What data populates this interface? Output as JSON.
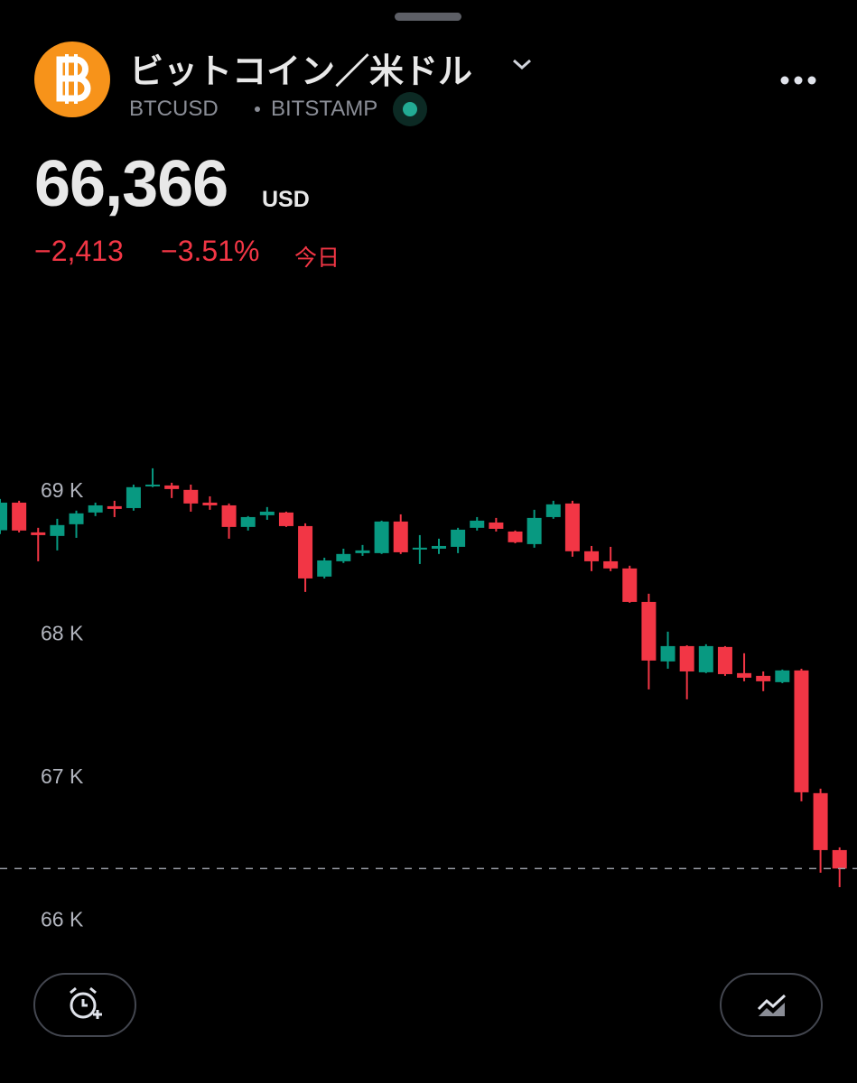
{
  "header": {
    "title": "ビットコイン／米ドル",
    "symbol": "BTCUSD",
    "exchange": "BITSTAMP",
    "price": "66,366",
    "currency": "USD",
    "change": "−2,413",
    "change_percent": "−3.51%",
    "period": "今日"
  },
  "chart_data": {
    "type": "candlestick",
    "open": [
      68731,
      68924,
      68716,
      68691,
      68773,
      68855,
      68899,
      68886,
      69038,
      69044,
      69013,
      68924,
      68905,
      68754,
      68836,
      68855,
      68760,
      68407,
      68514,
      68571,
      68571,
      68792,
      68596,
      68602,
      68615,
      68748,
      68785,
      68722,
      68634,
      68823,
      68918,
      68584,
      68514,
      68464,
      68230,
      67814,
      67921,
      67738,
      67915,
      67732,
      67713,
      67669,
      67751,
      66893,
      66495
    ],
    "high": [
      68950,
      68937,
      68748,
      68811,
      68868,
      68924,
      68937,
      69050,
      69164,
      69063,
      69050,
      68968,
      68918,
      68830,
      68893,
      68861,
      68779,
      68539,
      68602,
      68628,
      68798,
      68842,
      68697,
      68672,
      68748,
      68823,
      68817,
      68729,
      68874,
      68937,
      68937,
      68621,
      68615,
      68483,
      68287,
      68022,
      67927,
      67934,
      67921,
      67871,
      67744,
      67757,
      67763,
      66924,
      66514
    ],
    "low": [
      68704,
      68716,
      68514,
      68590,
      68678,
      68830,
      68823,
      68868,
      69032,
      68956,
      68861,
      68874,
      68672,
      68729,
      68804,
      68754,
      68300,
      68394,
      68502,
      68552,
      68565,
      68565,
      68495,
      68565,
      68571,
      68729,
      68722,
      68640,
      68609,
      68811,
      68546,
      68445,
      68445,
      68224,
      67618,
      67763,
      67549,
      67732,
      67713,
      67675,
      67606,
      67662,
      66836,
      66337,
      66236
    ],
    "close": [
      68924,
      68729,
      68697,
      68767,
      68849,
      68905,
      68880,
      69032,
      69050,
      69019,
      68918,
      68905,
      68754,
      68823,
      68861,
      68760,
      68394,
      68520,
      68565,
      68590,
      68792,
      68577,
      68609,
      68621,
      68735,
      68798,
      68741,
      68647,
      68817,
      68912,
      68584,
      68514,
      68464,
      68230,
      67820,
      67921,
      67744,
      67921,
      67725,
      67700,
      67675,
      67751,
      66899,
      66495,
      66366
    ],
    "up_color": "#089981",
    "down_color": "#f23645",
    "ylim": [
      65750,
      70400
    ],
    "yticks": [
      {
        "value": 66000,
        "label": "66 K"
      },
      {
        "value": 67000,
        "label": "67 K"
      },
      {
        "value": 68000,
        "label": "68 K"
      },
      {
        "value": 69000,
        "label": "69 K"
      }
    ],
    "last_price": 66366
  }
}
